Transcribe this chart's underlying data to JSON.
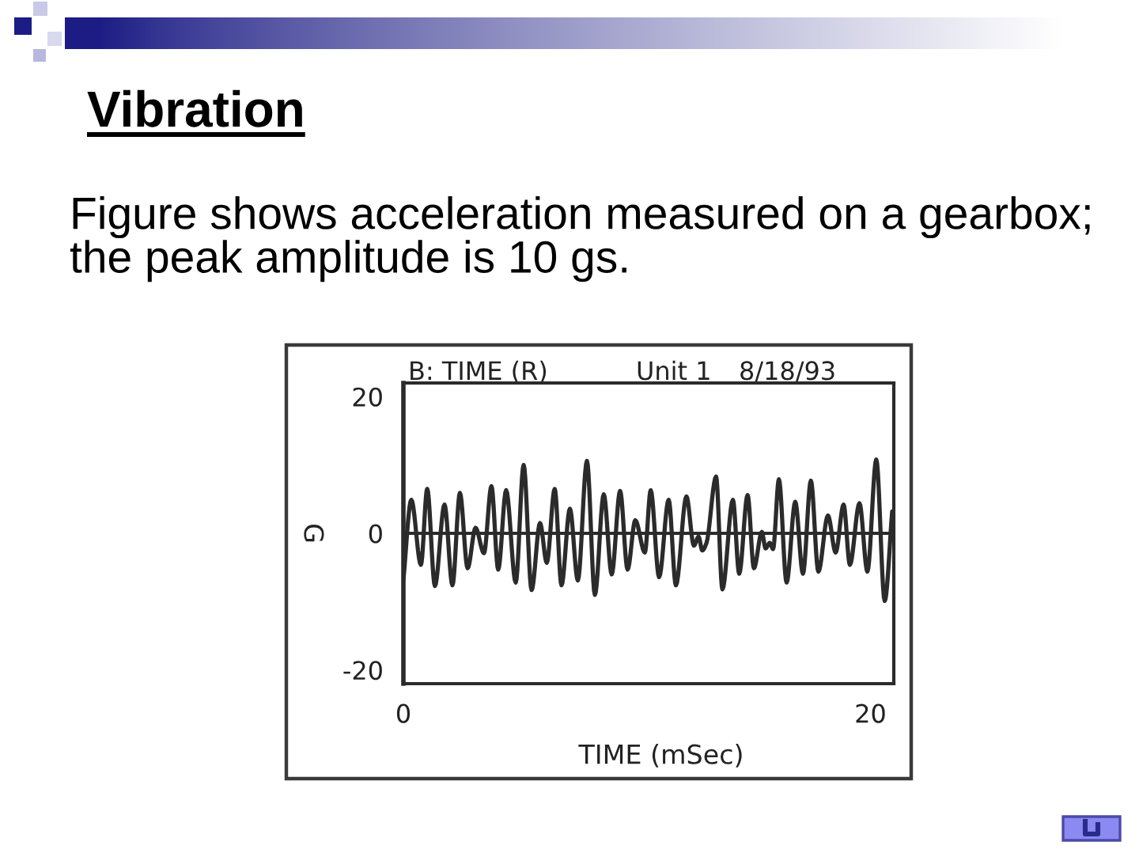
{
  "chart_data": {
    "type": "line",
    "title": "Vibration",
    "subtitle": "Figure shows acceleration measured on a gearbox; the peak amplitude is 10 gs.",
    "xlabel": "TIME (mSec)",
    "ylabel": "G",
    "annotations": [
      "B: TIME (R)",
      "Unit 1",
      "8/18/93"
    ],
    "x": [
      0.0,
      0.34,
      0.75,
      1.02,
      1.35,
      1.76,
      2.1,
      2.42,
      2.75,
      3.09,
      3.45,
      3.77,
      4.06,
      4.4,
      4.81,
      5.15,
      5.49,
      5.85,
      6.14,
      6.48,
      6.77,
      7.13,
      7.47,
      7.86,
      8.2,
      8.58,
      8.92,
      9.28,
      9.6,
      9.93,
      10.34,
      10.59,
      10.95,
      11.36,
      11.67,
      12.12,
      12.44,
      12.64,
      12.8,
      12.98,
      13.39,
      13.66,
      14.11,
      14.38,
      14.74,
      15.01,
      15.35,
      15.51,
      15.69,
      15.83,
      16.08,
      16.41,
      16.78,
      17.11,
      17.45,
      17.77,
      18.18,
      18.51,
      18.85,
      19.12,
      19.53,
      19.87,
      20.25,
      20.61,
      20.93
    ],
    "series": [
      {
        "color": "#2b2b2b",
        "values": [
          -6.8,
          4.9,
          -4.6,
          6.5,
          -7.7,
          4.2,
          -7.6,
          5.9,
          -5.1,
          0.8,
          -2.9,
          6.9,
          -5.3,
          6.3,
          -7.2,
          10.0,
          -8.3,
          1.5,
          -4.3,
          6.5,
          -7.6,
          3.6,
          -6.9,
          10.6,
          -9.0,
          5.7,
          -6.0,
          6.2,
          -5.3,
          1.9,
          -2.8,
          6.3,
          -6.4,
          4.9,
          -7.6,
          5.4,
          -1.8,
          -0.5,
          -2.5,
          -1.4,
          8.3,
          -8.2,
          4.9,
          -5.9,
          5.6,
          -5.1,
          0.2,
          -2.2,
          -1.4,
          -2.3,
          7.9,
          -7.2,
          4.6,
          -5.9,
          7.7,
          -5.6,
          2.6,
          -2.8,
          4.2,
          -4.6,
          4.4,
          -5.6,
          10.8,
          -9.9,
          3.2
        ]
      }
    ],
    "xlim": [
      0,
      21
    ],
    "xticks": [
      0,
      20
    ],
    "ylim": [
      -22,
      22
    ],
    "yticks": [
      -20,
      0,
      20
    ],
    "ref_lines": [
      {
        "axis": "y",
        "value": 0,
        "color": "#2b2b2b"
      }
    ],
    "line_style": "solid"
  }
}
